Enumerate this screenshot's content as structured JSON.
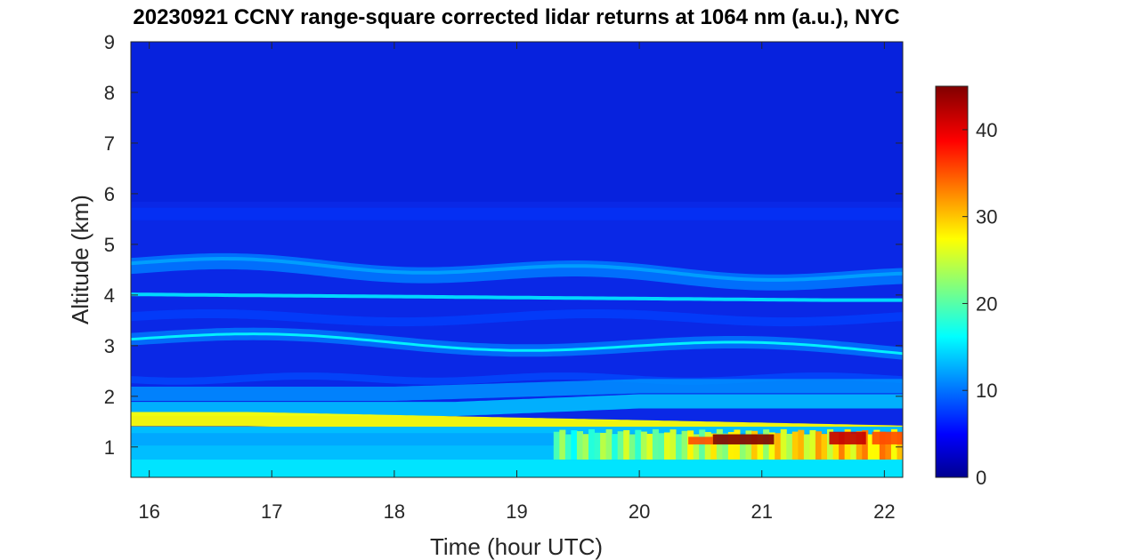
{
  "chart_data": {
    "type": "heatmap",
    "title": "20230921 CCNY range-square corrected lidar returns at 1064 nm (a.u.), NYC",
    "xlabel": "Time (hour UTC)",
    "ylabel": "Altitude (km)",
    "xlim": [
      15.85,
      22.15
    ],
    "ylim": [
      0.4,
      9
    ],
    "x_ticks": [
      16,
      17,
      18,
      19,
      20,
      21,
      22
    ],
    "y_ticks": [
      1,
      2,
      3,
      4,
      5,
      6,
      7,
      8,
      9
    ],
    "colorbar": {
      "min": 0,
      "max": 45,
      "ticks": [
        0,
        10,
        20,
        30,
        40
      ],
      "colormap": "jet"
    },
    "layers": [
      {
        "name": "background",
        "value": 6
      },
      {
        "name": "band",
        "altitude_km": 4.6,
        "value": 11
      },
      {
        "name": "layer",
        "altitude_km_start": 3.15,
        "altitude_km_end": 2.9,
        "value": 15
      },
      {
        "name": "layer",
        "altitude_km": 3.9,
        "value": 16
      },
      {
        "name": "aerosol top",
        "altitude_km": 1.55,
        "value": 28
      },
      {
        "name": "boundary layer",
        "altitude_km_range": [
          0.4,
          1.4
        ],
        "value_range": [
          14,
          45
        ]
      }
    ]
  }
}
